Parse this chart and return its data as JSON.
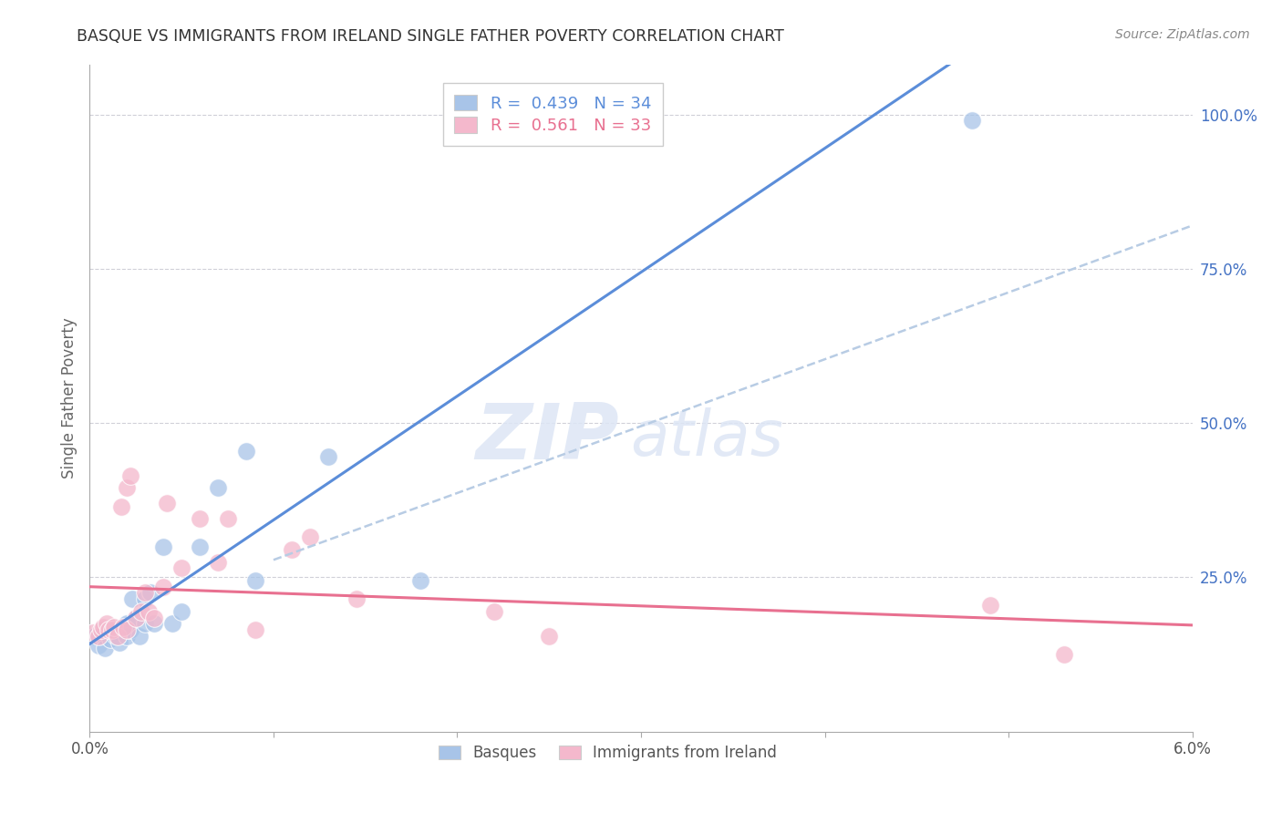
{
  "title": "BASQUE VS IMMIGRANTS FROM IRELAND SINGLE FATHER POVERTY CORRELATION CHART",
  "source": "Source: ZipAtlas.com",
  "ylabel": "Single Father Poverty",
  "ylabel_right_ticks": [
    "100.0%",
    "75.0%",
    "50.0%",
    "25.0%"
  ],
  "ylabel_right_vals": [
    1.0,
    0.75,
    0.5,
    0.25
  ],
  "xmin": 0.0,
  "xmax": 0.06,
  "ymin": 0.0,
  "ymax": 1.08,
  "legend_blue_r": "0.439",
  "legend_blue_n": "34",
  "legend_pink_r": "0.561",
  "legend_pink_n": "33",
  "watermark_zip": "ZIP",
  "watermark_atlas": "atlas",
  "blue_color": "#a8c4e8",
  "pink_color": "#f4b8cc",
  "blue_line_color": "#5b8dd9",
  "pink_line_color": "#e87090",
  "blue_dash_color": "#a8c4e8",
  "basques_x": [
    0.0003,
    0.0005,
    0.0006,
    0.0007,
    0.0008,
    0.0009,
    0.001,
    0.0011,
    0.0013,
    0.0014,
    0.0015,
    0.0016,
    0.0018,
    0.002,
    0.002,
    0.0022,
    0.0023,
    0.0025,
    0.0027,
    0.003,
    0.003,
    0.0033,
    0.0035,
    0.004,
    0.0045,
    0.005,
    0.006,
    0.007,
    0.0085,
    0.009,
    0.013,
    0.018,
    0.024,
    0.048
  ],
  "basques_y": [
    0.155,
    0.14,
    0.165,
    0.155,
    0.135,
    0.16,
    0.165,
    0.15,
    0.165,
    0.155,
    0.155,
    0.145,
    0.17,
    0.175,
    0.155,
    0.165,
    0.215,
    0.185,
    0.155,
    0.215,
    0.175,
    0.225,
    0.175,
    0.3,
    0.175,
    0.195,
    0.3,
    0.395,
    0.455,
    0.245,
    0.445,
    0.245,
    0.99,
    0.99
  ],
  "ireland_x": [
    0.0002,
    0.0005,
    0.0006,
    0.0007,
    0.0009,
    0.001,
    0.0012,
    0.0013,
    0.0015,
    0.0017,
    0.0018,
    0.002,
    0.002,
    0.0022,
    0.0025,
    0.0028,
    0.003,
    0.0032,
    0.0035,
    0.004,
    0.0042,
    0.005,
    0.006,
    0.007,
    0.0075,
    0.009,
    0.011,
    0.012,
    0.0145,
    0.022,
    0.025,
    0.049,
    0.053
  ],
  "ireland_y": [
    0.16,
    0.155,
    0.165,
    0.17,
    0.175,
    0.165,
    0.165,
    0.17,
    0.155,
    0.365,
    0.17,
    0.165,
    0.395,
    0.415,
    0.185,
    0.195,
    0.225,
    0.195,
    0.185,
    0.235,
    0.37,
    0.265,
    0.345,
    0.275,
    0.345,
    0.165,
    0.295,
    0.315,
    0.215,
    0.195,
    0.155,
    0.205,
    0.125
  ]
}
